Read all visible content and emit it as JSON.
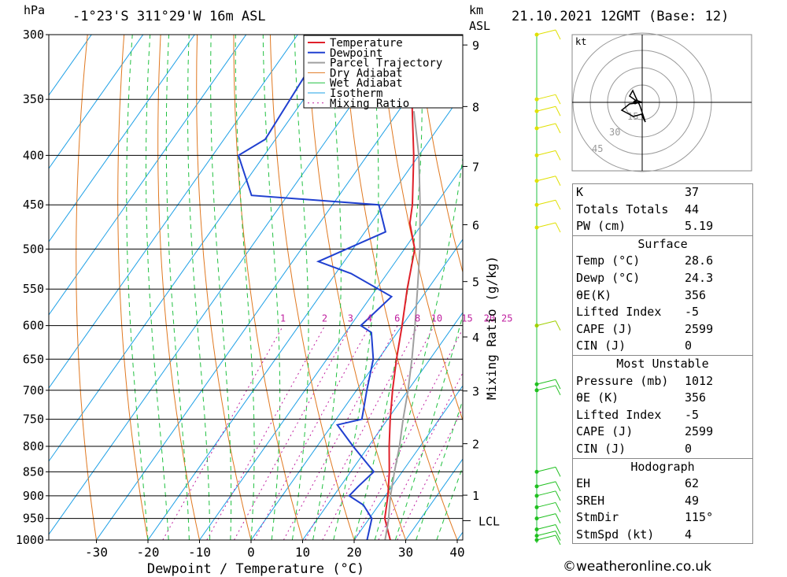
{
  "header": {
    "hpa_label": "hPa",
    "location": "-1°23'S 311°29'W 16m ASL",
    "km_label": "km",
    "asl_label": "ASL",
    "datetime": "21.10.2021 12GMT (Base: 12)"
  },
  "chart_data": {
    "type": "line",
    "title": "-1°23'S 311°29'W 16m ASL",
    "xlabel": "Dewpoint / Temperature (°C)",
    "ylabel": "hPa",
    "mixing_ratio_axis_label": "Mixing Ratio (g/kg)",
    "temp_ticks": [
      -30,
      -20,
      -10,
      0,
      10,
      20,
      30,
      40
    ],
    "pressure_ticks": [
      300,
      350,
      400,
      450,
      500,
      550,
      600,
      650,
      700,
      750,
      800,
      850,
      900,
      950,
      1000
    ],
    "height_ticks_km": [
      1,
      2,
      3,
      4,
      5,
      6,
      7,
      8,
      9
    ],
    "lcl_label": "LCL",
    "lcl_pressure": 955,
    "mixing_ratio_labels": [
      "1",
      "2",
      "3",
      "4",
      "6",
      "8",
      "10",
      "15",
      "20",
      "25"
    ],
    "legend": [
      "Temperature",
      "Dewpoint",
      "Parcel Trajectory",
      "Dry Adiabat",
      "Wet Adiabat",
      "Isotherm",
      "Mixing Ratio"
    ],
    "legend_position": "top-right",
    "series": [
      {
        "name": "Temperature",
        "color": "#e0202a",
        "points": [
          [
            1010,
            28.6
          ],
          [
            1000,
            27
          ],
          [
            950,
            23
          ],
          [
            900,
            20.5
          ],
          [
            850,
            17.5
          ],
          [
            800,
            14
          ],
          [
            750,
            10.5
          ],
          [
            700,
            7
          ],
          [
            650,
            3.5
          ],
          [
            600,
            0
          ],
          [
            550,
            -4
          ],
          [
            500,
            -8
          ],
          [
            470,
            -12.5
          ],
          [
            450,
            -14.5
          ],
          [
            400,
            -21
          ],
          [
            350,
            -29
          ],
          [
            310,
            -38
          ],
          [
            300,
            -41
          ]
        ]
      },
      {
        "name": "Dewpoint",
        "color": "#2040d0",
        "points": [
          [
            1010,
            24.3
          ],
          [
            1000,
            22.5
          ],
          [
            950,
            20.5
          ],
          [
            920,
            17
          ],
          [
            900,
            13
          ],
          [
            880,
            13.5
          ],
          [
            850,
            14.5
          ],
          [
            800,
            7
          ],
          [
            760,
            1
          ],
          [
            750,
            5
          ],
          [
            700,
            2
          ],
          [
            650,
            -1
          ],
          [
            610,
            -5
          ],
          [
            600,
            -8
          ],
          [
            560,
            -6
          ],
          [
            530,
            -17
          ],
          [
            515,
            -25
          ],
          [
            480,
            -16
          ],
          [
            450,
            -21
          ],
          [
            440,
            -47
          ],
          [
            400,
            -55
          ],
          [
            385,
            -52
          ],
          [
            330,
            -53
          ],
          [
            305,
            -41
          ],
          [
            300,
            -41
          ]
        ]
      },
      {
        "name": "Parcel Trajectory",
        "color": "#a0a0a0",
        "points": [
          [
            1000,
            26
          ],
          [
            955,
            24
          ],
          [
            900,
            21
          ],
          [
            850,
            18.5
          ],
          [
            800,
            16
          ],
          [
            750,
            13
          ],
          [
            700,
            10
          ],
          [
            650,
            6.5
          ],
          [
            600,
            2.5
          ],
          [
            550,
            -2
          ],
          [
            500,
            -7
          ],
          [
            450,
            -13
          ],
          [
            400,
            -20
          ],
          [
            360,
            -27
          ]
        ]
      }
    ]
  },
  "wind_profile": {
    "levels": [
      1000,
      950,
      900,
      850,
      700,
      600,
      450,
      400,
      350,
      300
    ],
    "colors": {
      "low": "#20c020",
      "mid": "#a0d000",
      "high": "#e0e000"
    }
  },
  "hodograph": {
    "unit": "kt",
    "ring_labels": [
      "15",
      "30",
      "45"
    ]
  },
  "indices": {
    "k": {
      "label": "K",
      "value": "37"
    },
    "tt": {
      "label": "Totals Totals",
      "value": "44"
    },
    "pw": {
      "label": "PW (cm)",
      "value": "5.19"
    },
    "surface": {
      "title": "Surface",
      "temp": {
        "label": "Temp (°C)",
        "value": "28.6"
      },
      "dewp": {
        "label": "Dewp (°C)",
        "value": "24.3"
      },
      "theta": {
        "label": "θE(K)",
        "value": "356"
      },
      "li": {
        "label": "Lifted Index",
        "value": "-5"
      },
      "cape": {
        "label": "CAPE (J)",
        "value": "2599"
      },
      "cin": {
        "label": "CIN (J)",
        "value": "0"
      }
    },
    "mu": {
      "title": "Most Unstable",
      "pressure": {
        "label": "Pressure (mb)",
        "value": "1012"
      },
      "theta": {
        "label": "θE (K)",
        "value": "356"
      },
      "li": {
        "label": "Lifted Index",
        "value": "-5"
      },
      "cape": {
        "label": "CAPE (J)",
        "value": "2599"
      },
      "cin": {
        "label": "CIN (J)",
        "value": "0"
      }
    },
    "hodo": {
      "title": "Hodograph",
      "eh": {
        "label": "EH",
        "value": "62"
      },
      "sreh": {
        "label": "SREH",
        "value": "49"
      },
      "stmdir": {
        "label": "StmDir",
        "value": "115°"
      },
      "stmspd": {
        "label": "StmSpd (kt)",
        "value": "4"
      }
    }
  },
  "footer": {
    "copyright": "©weatheronline.co.uk"
  }
}
